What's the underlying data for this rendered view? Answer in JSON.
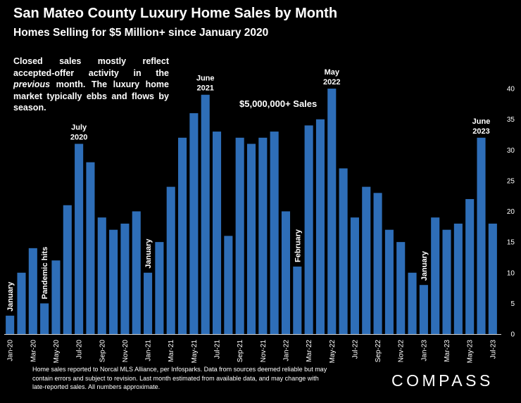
{
  "header": {
    "title": "San Mateo County Luxury Home Sales by Month",
    "subtitle": "Homes Selling for $5 Million+ since January 2020"
  },
  "note": {
    "line1": "Closed sales mostly reflect accepted-offer activity in the ",
    "emphasis": "previous",
    "line2": " month. The luxury home market typically ebbs and flows by season."
  },
  "footer": {
    "text": "Home sales reported to Norcal MLS Alliance, per Infosparks. Data from sources deemed reliable but may contain errors and subject to revision.  Last month estimated from available data, and may change with late-reported sales. All numbers approximate."
  },
  "logo": {
    "text": "COMPASS"
  },
  "colors": {
    "bar": "#2e6eb8",
    "background": "#000000",
    "text": "#ffffff"
  },
  "chart_data": {
    "type": "bar",
    "title": "San Mateo County Luxury Home Sales by Month",
    "subtitle": "Homes Selling for $5 Million+ since January 2020",
    "legend": "$5,000,000+ Sales",
    "categories": [
      "Jan-20",
      "Feb-20",
      "Mar-20",
      "Apr-20",
      "May-20",
      "Jun-20",
      "Jul-20",
      "Aug-20",
      "Sep-20",
      "Oct-20",
      "Nov-20",
      "Dec-20",
      "Jan-21",
      "Feb-21",
      "Mar-21",
      "Apr-21",
      "May-21",
      "Jun-21",
      "Jul-21",
      "Aug-21",
      "Sep-21",
      "Oct-21",
      "Nov-21",
      "Dec-21",
      "Jan-22",
      "Feb-22",
      "Mar-22",
      "Apr-22",
      "May-22",
      "Jun-22",
      "Jul-22",
      "Aug-22",
      "Sep-22",
      "Oct-22",
      "Nov-22",
      "Dec-22",
      "Jan-23",
      "Feb-23",
      "Mar-23",
      "Apr-23",
      "May-23",
      "Jun-23",
      "Jul-23"
    ],
    "tick_labels": [
      "Jan-20",
      "Mar-20",
      "May-20",
      "Jul-20",
      "Sep-20",
      "Nov-20",
      "Jan-21",
      "Mar-21",
      "May-21",
      "Jul-21",
      "Sep-21",
      "Nov-21",
      "Jan-22",
      "Mar-22",
      "May-22",
      "Jul-22",
      "Sep-22",
      "Nov-22",
      "Jan-23",
      "Mar-23",
      "May-23",
      "Jul-23"
    ],
    "values": [
      3,
      10,
      14,
      5,
      12,
      21,
      31,
      28,
      19,
      17,
      18,
      20,
      10,
      15,
      24,
      32,
      36,
      39,
      33,
      16,
      32,
      31,
      32,
      33,
      20,
      11,
      34,
      35,
      40,
      27,
      19,
      24,
      23,
      17,
      15,
      10,
      8,
      19,
      17,
      18,
      22,
      32,
      18
    ],
    "ylim": [
      0,
      40
    ],
    "yticks": [
      0,
      5,
      10,
      15,
      20,
      25,
      30,
      35,
      40
    ],
    "y_axis_side": "right",
    "grid": false,
    "annotations": [
      {
        "index": 0,
        "lines": [
          "January"
        ],
        "rotated": true
      },
      {
        "index": 3,
        "lines": [
          "Pandemic hits"
        ],
        "rotated": true
      },
      {
        "index": 6,
        "lines": [
          "July",
          "2020"
        ],
        "rotated": false
      },
      {
        "index": 12,
        "lines": [
          "January"
        ],
        "rotated": true
      },
      {
        "index": 17,
        "lines": [
          "June",
          "2021"
        ],
        "rotated": false
      },
      {
        "index": 25,
        "lines": [
          "February"
        ],
        "rotated": true
      },
      {
        "index": 28,
        "lines": [
          "May",
          "2022"
        ],
        "rotated": false
      },
      {
        "index": 36,
        "lines": [
          "January"
        ],
        "rotated": true
      },
      {
        "index": 41,
        "lines": [
          "June",
          "2023"
        ],
        "rotated": false
      }
    ]
  }
}
